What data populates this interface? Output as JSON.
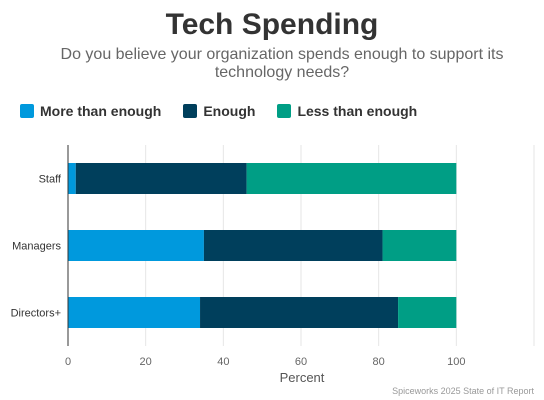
{
  "chart_data": {
    "type": "bar",
    "orientation": "horizontal",
    "stacked": true,
    "title": "Tech Spending",
    "subtitle": "Do you believe your organization spends enough to support its technology needs?",
    "xlabel": "Percent",
    "ylabel": "",
    "xlim": [
      0,
      120
    ],
    "xticks": [
      "0",
      "20",
      "40",
      "60",
      "80",
      "100"
    ],
    "categories": [
      "Staff",
      "Managers",
      "Directors+"
    ],
    "series": [
      {
        "name": "More than enough",
        "color": "#0099dd",
        "values": [
          2,
          35,
          34
        ]
      },
      {
        "name": "Enough",
        "color": "#003f5c",
        "values": [
          44,
          46,
          51
        ]
      },
      {
        "name": "Less than enough",
        "color": "#009e85",
        "values": [
          54,
          19,
          15
        ]
      }
    ],
    "legend_position": "top-left",
    "grid": true,
    "source": "Spiceworks 2025 State of IT Report"
  }
}
